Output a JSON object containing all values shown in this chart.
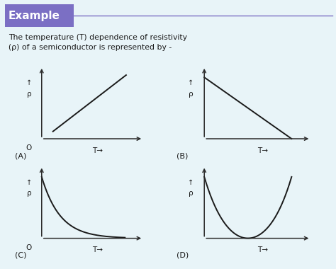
{
  "background_color": "#e8f4f8",
  "example_bg": "#7b6fc4",
  "example_text": "Example",
  "description_line1": "The temperature (T) dependence of resistivity",
  "description_line2": "(ρ) of a semiconductor is represented by -",
  "label_A": "(A)",
  "label_B": "(B)",
  "label_C": "(C)",
  "label_D": "(D)",
  "axis_label_rho": "ρ",
  "axis_label_T": "T→",
  "origin_label": "O",
  "curve_color": "#1a1a1a",
  "axis_color": "#2a2a2a",
  "text_color": "#1a1a1a",
  "line_color": "#7b6fc4"
}
